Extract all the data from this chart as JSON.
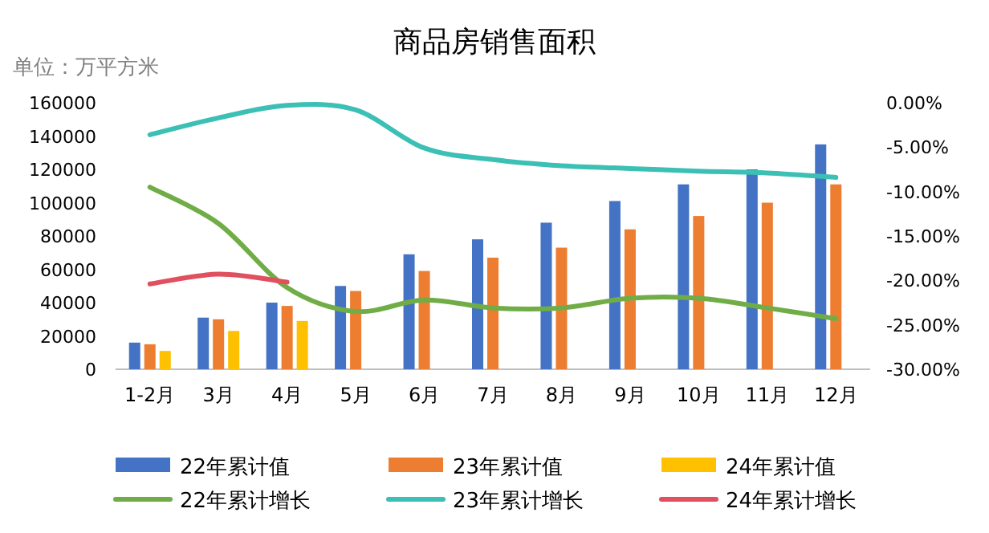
{
  "chart_data": {
    "type": "bar",
    "title": "商品房销售面积",
    "ylabel": "单位：万平方米",
    "categories": [
      "1-2月",
      "3月",
      "4月",
      "5月",
      "6月",
      "7月",
      "8月",
      "9月",
      "10月",
      "11月",
      "12月"
    ],
    "series": [
      {
        "name": "22年累计值",
        "color": "#4472c4",
        "values": [
          16000,
          31000,
          40000,
          50000,
          69000,
          78000,
          88000,
          101000,
          111000,
          120000,
          135000
        ]
      },
      {
        "name": "23年累计值",
        "color": "#ed7d31",
        "values": [
          15000,
          30000,
          38000,
          47000,
          59000,
          67000,
          73000,
          84000,
          92000,
          100000,
          111000
        ]
      },
      {
        "name": "24年累计值",
        "color": "#ffc000",
        "values": [
          11000,
          23000,
          29000,
          null,
          null,
          null,
          null,
          null,
          null,
          null,
          null
        ]
      },
      {
        "name": "22年累计增长",
        "type": "line",
        "axis": "y2",
        "color": "#70ad47",
        "values": [
          -9.5,
          -13.6,
          -20.8,
          -23.5,
          -22.2,
          -23.1,
          -23.1,
          -22.0,
          -22.0,
          -23.1,
          -24.3
        ]
      },
      {
        "name": "23年累计增长",
        "type": "line",
        "axis": "y2",
        "color": "#3cbfb4",
        "values": [
          -3.6,
          -1.7,
          -0.3,
          -0.8,
          -5.1,
          -6.4,
          -7.1,
          -7.4,
          -7.7,
          -7.9,
          -8.4
        ]
      },
      {
        "name": "24年累计增长",
        "type": "line",
        "axis": "y2",
        "color": "#e0505f",
        "values": [
          -20.4,
          -19.3,
          -20.2,
          null,
          null,
          null,
          null,
          null,
          null,
          null,
          null
        ]
      }
    ],
    "ylim": [
      0,
      160000
    ],
    "yticks": [
      0,
      20000,
      40000,
      60000,
      80000,
      100000,
      120000,
      140000,
      160000
    ],
    "y2lim": [
      -30,
      0
    ],
    "y2ticks": [
      {
        "value": 0,
        "label": "0.00%"
      },
      {
        "value": -5,
        "label": "-5.00%"
      },
      {
        "value": -10,
        "label": "-10.00%"
      },
      {
        "value": -15,
        "label": "-15.00%"
      },
      {
        "value": -20,
        "label": "-20.00%"
      },
      {
        "value": -25,
        "label": "-25.00%"
      },
      {
        "value": -30,
        "label": "-30.00%"
      }
    ],
    "legend": "bottom",
    "grid": false,
    "marker": "none",
    "line_style": "solid"
  }
}
